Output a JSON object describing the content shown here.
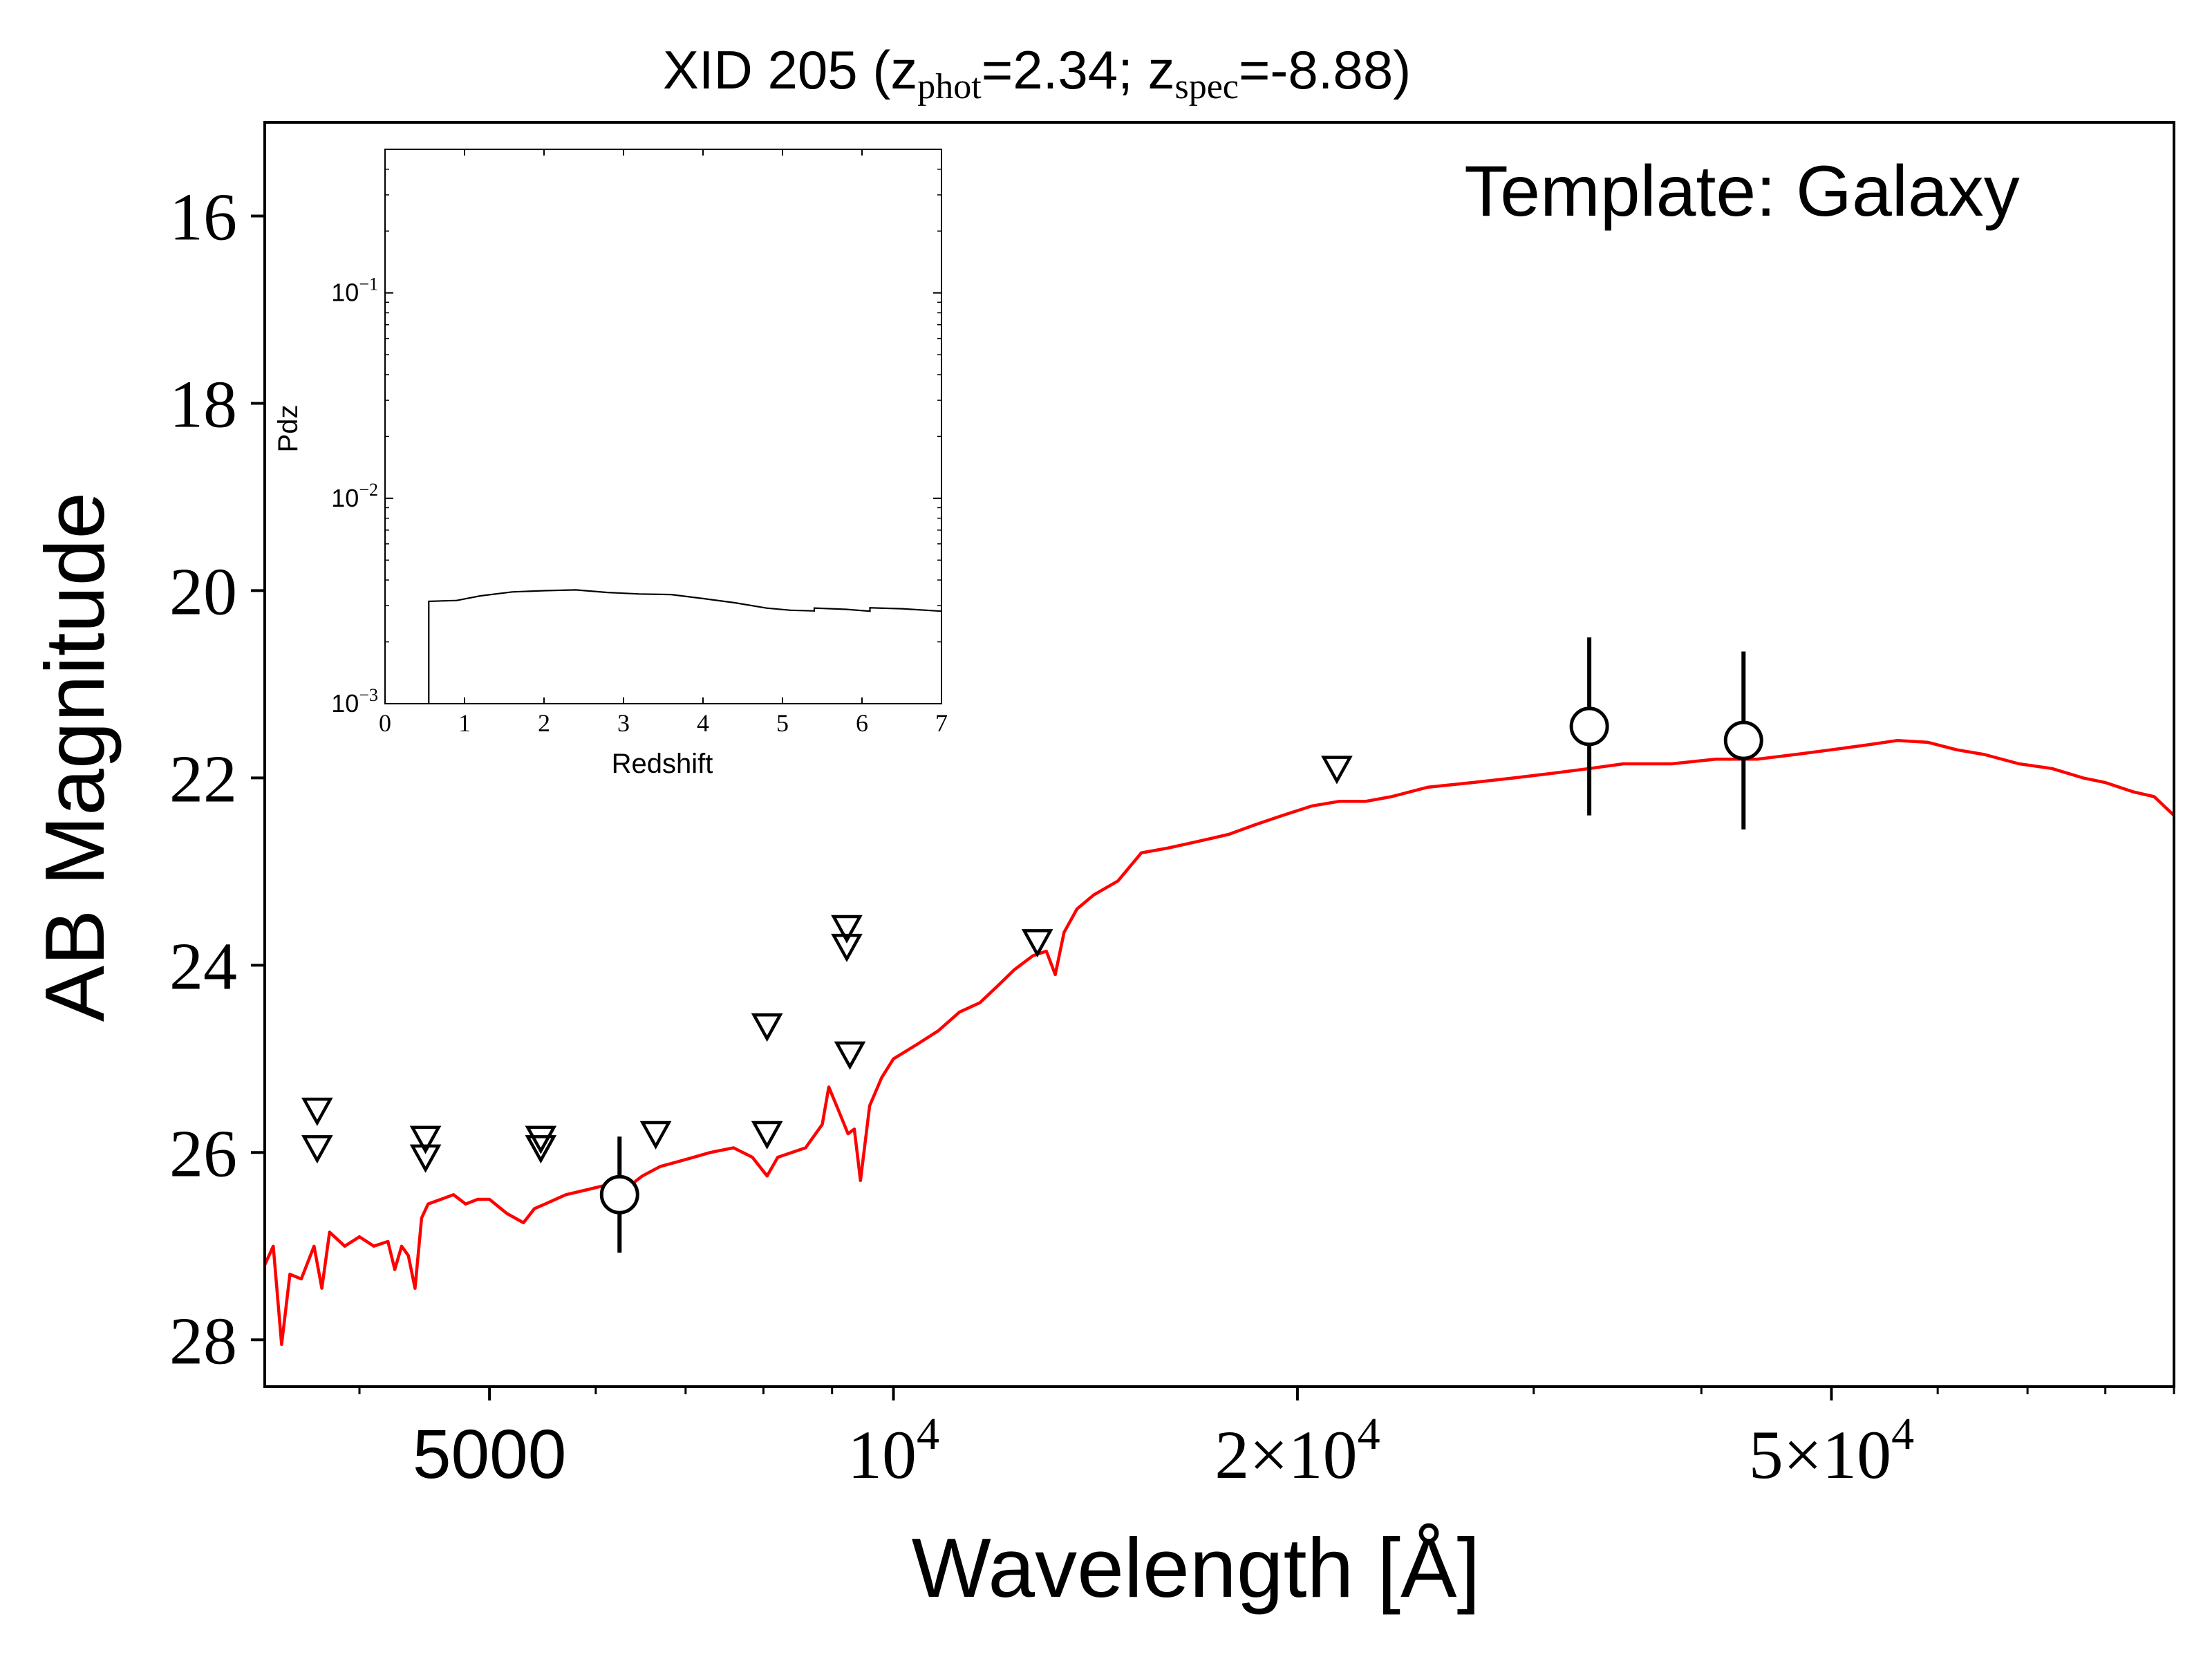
{
  "chart_data": {
    "title": "XID 205 (z_phot=2.34; z_spec=-8.88)",
    "title_parts": {
      "prefix": "XID 205 (z",
      "phot_sub": "phot",
      "mid": "=2.34; z",
      "spec_sub": "spec",
      "suffix": "=-8.88)"
    },
    "main": {
      "type": "line",
      "xlabel": "Wavelength [Å]",
      "ylabel": "AB Magnitude",
      "xscale": "log",
      "xlim": [
        3400,
        90000
      ],
      "ylim": [
        28.5,
        15.0
      ],
      "y_inverted": true,
      "yticks": [
        "16",
        "18",
        "20",
        "22",
        "24",
        "26",
        "28"
      ],
      "xticks": [
        {
          "value": 5000,
          "label": "5000"
        },
        {
          "value": 10000,
          "label": "10",
          "exp": "4"
        },
        {
          "value": 20000,
          "label": "2×10",
          "exp": "4"
        },
        {
          "value": 50000,
          "label": "5×10",
          "exp": "4"
        }
      ],
      "annotation": "Template: Galaxy",
      "template_color": "#ff0000",
      "template_spectrum": [
        [
          3400,
          27.2
        ],
        [
          3450,
          27.0
        ],
        [
          3500,
          28.05
        ],
        [
          3550,
          27.3
        ],
        [
          3620,
          27.35
        ],
        [
          3700,
          27.0
        ],
        [
          3750,
          27.45
        ],
        [
          3800,
          26.85
        ],
        [
          3900,
          27.0
        ],
        [
          4000,
          26.9
        ],
        [
          4100,
          27.0
        ],
        [
          4200,
          26.95
        ],
        [
          4250,
          27.25
        ],
        [
          4300,
          27.0
        ],
        [
          4350,
          27.1
        ],
        [
          4400,
          27.45
        ],
        [
          4450,
          26.7
        ],
        [
          4500,
          26.55
        ],
        [
          4600,
          26.5
        ],
        [
          4700,
          26.45
        ],
        [
          4800,
          26.55
        ],
        [
          4900,
          26.5
        ],
        [
          5000,
          26.5
        ],
        [
          5150,
          26.65
        ],
        [
          5300,
          26.75
        ],
        [
          5400,
          26.6
        ],
        [
          5500,
          26.55
        ],
        [
          5700,
          26.45
        ],
        [
          5900,
          26.4
        ],
        [
          6100,
          26.35
        ],
        [
          6300,
          26.4
        ],
        [
          6500,
          26.25
        ],
        [
          6700,
          26.15
        ],
        [
          6900,
          26.1
        ],
        [
          7100,
          26.05
        ],
        [
          7300,
          26.0
        ],
        [
          7600,
          25.95
        ],
        [
          7850,
          26.05
        ],
        [
          8050,
          26.25
        ],
        [
          8200,
          26.05
        ],
        [
          8400,
          26.0
        ],
        [
          8600,
          25.95
        ],
        [
          8850,
          25.7
        ],
        [
          8950,
          25.3
        ],
        [
          9100,
          25.55
        ],
        [
          9250,
          25.8
        ],
        [
          9350,
          25.75
        ],
        [
          9450,
          26.3
        ],
        [
          9600,
          25.5
        ],
        [
          9800,
          25.2
        ],
        [
          10000,
          25.0
        ],
        [
          10400,
          24.85
        ],
        [
          10800,
          24.7
        ],
        [
          11200,
          24.5
        ],
        [
          11600,
          24.4
        ],
        [
          12000,
          24.2
        ],
        [
          12300,
          24.05
        ],
        [
          12700,
          23.9
        ],
        [
          13000,
          23.85
        ],
        [
          13200,
          24.1
        ],
        [
          13400,
          23.65
        ],
        [
          13700,
          23.4
        ],
        [
          14100,
          23.25
        ],
        [
          14700,
          23.1
        ],
        [
          15300,
          22.8
        ],
        [
          16000,
          22.75
        ],
        [
          16600,
          22.7
        ],
        [
          17200,
          22.65
        ],
        [
          17800,
          22.6
        ],
        [
          18600,
          22.5
        ],
        [
          19500,
          22.4
        ],
        [
          20500,
          22.3
        ],
        [
          21500,
          22.25
        ],
        [
          22500,
          22.25
        ],
        [
          23500,
          22.2
        ],
        [
          25000,
          22.1
        ],
        [
          27000,
          22.05
        ],
        [
          29000,
          22.0
        ],
        [
          31000,
          21.95
        ],
        [
          33000,
          21.9
        ],
        [
          35000,
          21.85
        ],
        [
          38000,
          21.85
        ],
        [
          41000,
          21.8
        ],
        [
          44000,
          21.8
        ],
        [
          47000,
          21.75
        ],
        [
          50000,
          21.7
        ],
        [
          53000,
          21.65
        ],
        [
          56000,
          21.6
        ],
        [
          59000,
          21.62
        ],
        [
          62000,
          21.7
        ],
        [
          65000,
          21.75
        ],
        [
          69000,
          21.85
        ],
        [
          73000,
          21.9
        ],
        [
          77000,
          22.0
        ],
        [
          80000,
          22.05
        ],
        [
          84000,
          22.15
        ],
        [
          87000,
          22.2
        ],
        [
          90000,
          22.4
        ]
      ],
      "detections": [
        {
          "x": 6250,
          "y": 26.45,
          "yerr": 0.62
        },
        {
          "x": 33000,
          "y": 21.45,
          "yerr": 0.95
        },
        {
          "x": 43000,
          "y": 21.6,
          "yerr": 0.95
        }
      ],
      "upper_limits": [
        {
          "x": 3720,
          "y": 25.55
        },
        {
          "x": 3720,
          "y": 25.95
        },
        {
          "x": 4480,
          "y": 25.85
        },
        {
          "x": 4480,
          "y": 26.05
        },
        {
          "x": 5460,
          "y": 25.85
        },
        {
          "x": 5460,
          "y": 25.95
        },
        {
          "x": 6650,
          "y": 25.8
        },
        {
          "x": 8050,
          "y": 24.65
        },
        {
          "x": 8050,
          "y": 25.8
        },
        {
          "x": 9230,
          "y": 23.6
        },
        {
          "x": 9230,
          "y": 23.8
        },
        {
          "x": 9280,
          "y": 24.95
        },
        {
          "x": 12800,
          "y": 23.75
        },
        {
          "x": 21400,
          "y": 21.9
        }
      ]
    },
    "inset": {
      "type": "line",
      "xlabel": "Redshift",
      "ylabel": "Pdz",
      "yscale": "log",
      "xlim": [
        0,
        7
      ],
      "ylim": [
        0.001,
        0.5
      ],
      "xticks": [
        "0",
        "1",
        "2",
        "3",
        "4",
        "5",
        "6",
        "7"
      ],
      "yticks": [
        {
          "value": 0.1,
          "base": "10",
          "exp": "−1"
        },
        {
          "value": 0.01,
          "base": "10",
          "exp": "−2"
        },
        {
          "value": 0.001,
          "base": "10",
          "exp": "−3"
        }
      ],
      "pdz": [
        [
          0.55,
          0.001
        ],
        [
          0.55,
          0.00315
        ],
        [
          0.9,
          0.00318
        ],
        [
          1.2,
          0.00335
        ],
        [
          1.6,
          0.0035
        ],
        [
          2.0,
          0.00355
        ],
        [
          2.4,
          0.00358
        ],
        [
          2.8,
          0.00348
        ],
        [
          3.2,
          0.00342
        ],
        [
          3.6,
          0.0034
        ],
        [
          4.0,
          0.00325
        ],
        [
          4.4,
          0.0031
        ],
        [
          4.8,
          0.00292
        ],
        [
          5.1,
          0.00285
        ],
        [
          5.4,
          0.00283
        ],
        [
          5.4,
          0.00292
        ],
        [
          5.8,
          0.00288
        ],
        [
          6.1,
          0.00282
        ],
        [
          6.1,
          0.00293
        ],
        [
          6.5,
          0.0029
        ],
        [
          7.0,
          0.00282
        ]
      ]
    }
  }
}
